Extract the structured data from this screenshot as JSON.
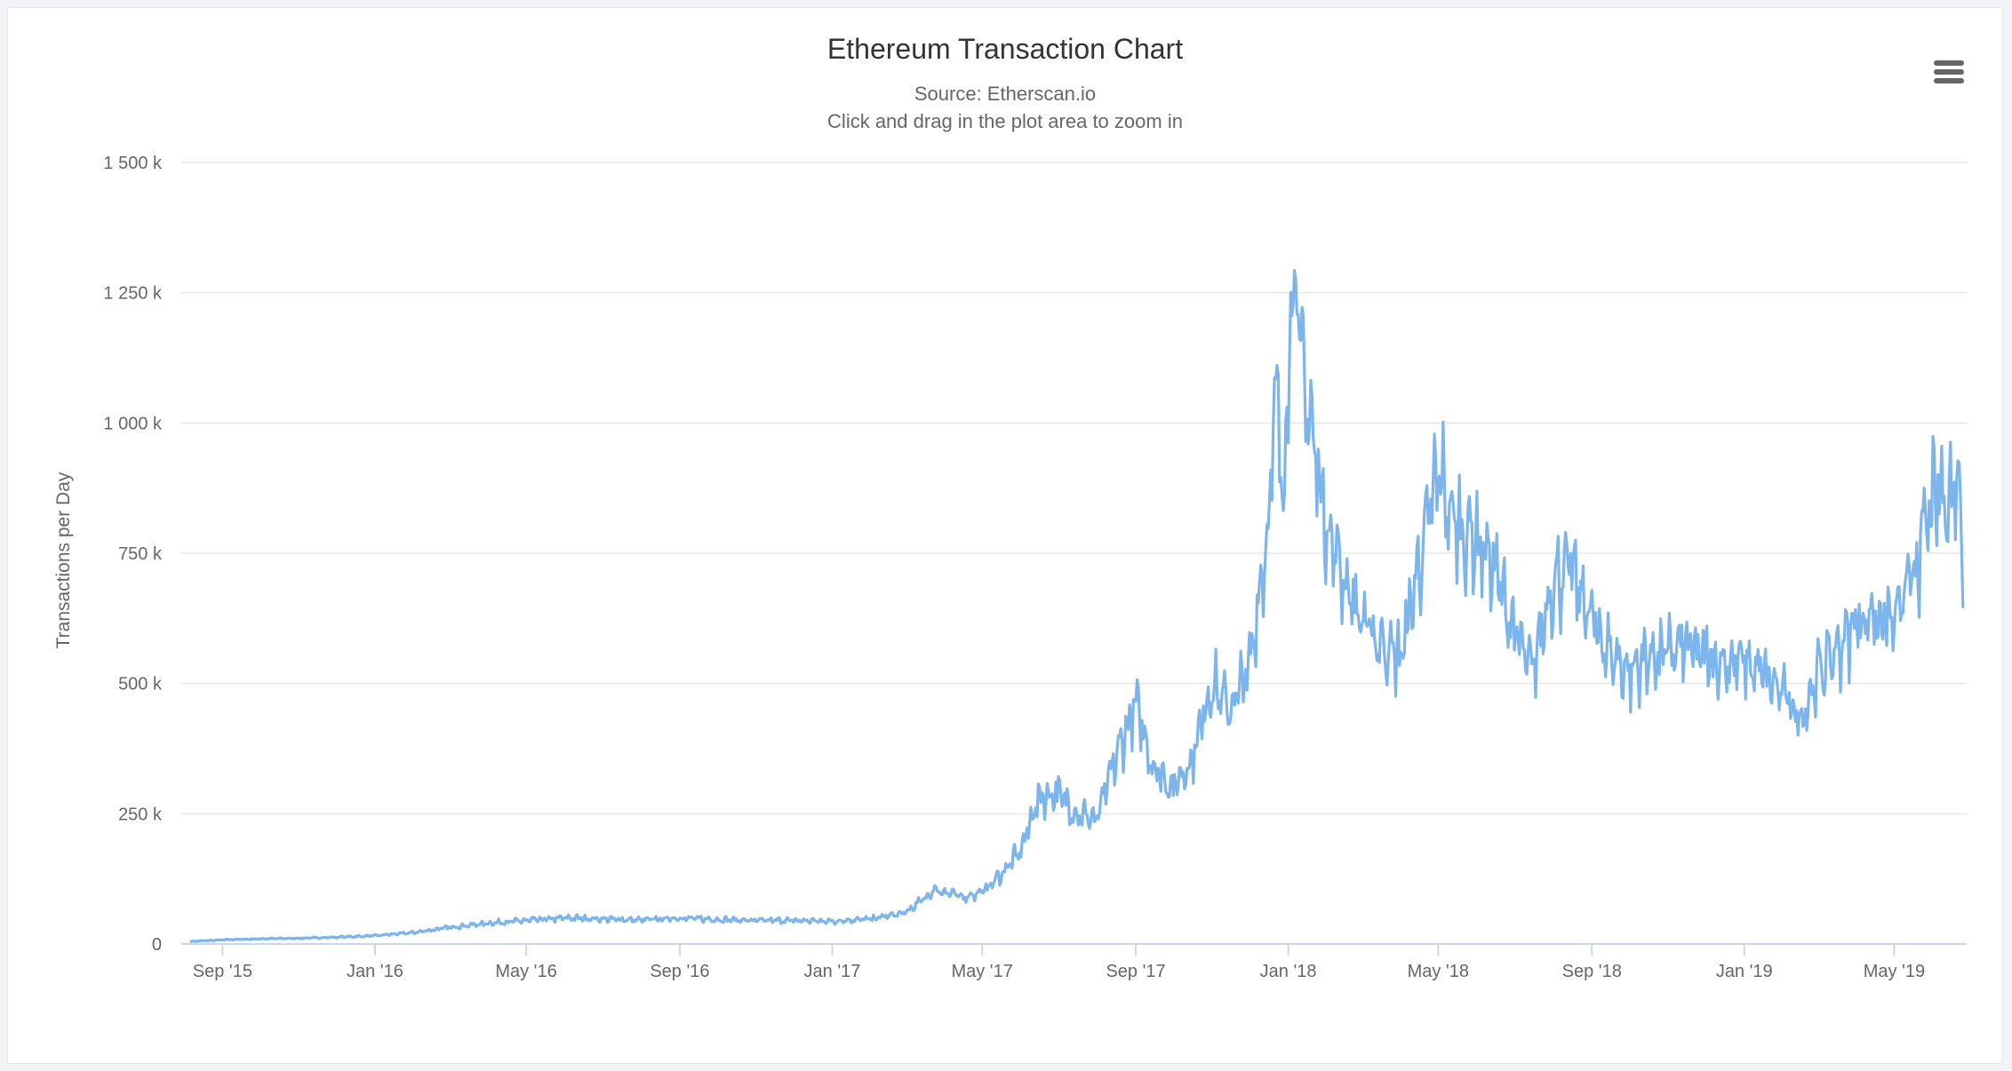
{
  "menu": {
    "icon": "hamburger-menu-icon"
  },
  "colors": {
    "series": "#7cb5ec",
    "grid": "#e6e6e6",
    "axis": "#ccd6eb",
    "text": "#666666",
    "title": "#333333"
  },
  "chart_data": {
    "type": "line",
    "title": "Ethereum Transaction Chart",
    "subtitle": "Source: Etherscan.io",
    "subtitle2": "Click and drag in the plot area to zoom in",
    "ylabel": "Transactions per Day",
    "xlabel": "",
    "ylim": [
      0,
      1500000
    ],
    "xlim": [
      "2015-07-30",
      "2019-06-28"
    ],
    "grid": true,
    "legend": "none",
    "y_ticks": [
      {
        "value": 0,
        "label": "0"
      },
      {
        "value": 250000,
        "label": "250 k"
      },
      {
        "value": 500000,
        "label": "500 k"
      },
      {
        "value": 750000,
        "label": "750 k"
      },
      {
        "value": 1000000,
        "label": "1 000 k"
      },
      {
        "value": 1250000,
        "label": "1 250 k"
      },
      {
        "value": 1500000,
        "label": "1 500 k"
      }
    ],
    "x_ticks": [
      {
        "date": "2015-09-01",
        "label": "Sep '15"
      },
      {
        "date": "2016-01-01",
        "label": "Jan '16"
      },
      {
        "date": "2016-05-01",
        "label": "May '16"
      },
      {
        "date": "2016-09-01",
        "label": "Sep '16"
      },
      {
        "date": "2017-01-01",
        "label": "Jan '17"
      },
      {
        "date": "2017-05-01",
        "label": "May '17"
      },
      {
        "date": "2017-09-01",
        "label": "Sep '17"
      },
      {
        "date": "2018-01-01",
        "label": "Jan '18"
      },
      {
        "date": "2018-05-01",
        "label": "May '18"
      },
      {
        "date": "2018-09-01",
        "label": "Sep '18"
      },
      {
        "date": "2019-01-01",
        "label": "Jan '19"
      },
      {
        "date": "2019-05-01",
        "label": "May '19"
      }
    ],
    "series": [
      {
        "points": [
          [
            "2015-08-07",
            5000
          ],
          [
            "2015-09-01",
            8000
          ],
          [
            "2015-10-01",
            10000
          ],
          [
            "2015-11-01",
            11000
          ],
          [
            "2015-12-01",
            13000
          ],
          [
            "2016-01-01",
            16000
          ],
          [
            "2016-02-01",
            22000
          ],
          [
            "2016-03-01",
            32000
          ],
          [
            "2016-04-01",
            40000
          ],
          [
            "2016-05-01",
            45000
          ],
          [
            "2016-06-01",
            50000
          ],
          [
            "2016-07-01",
            48000
          ],
          [
            "2016-08-01",
            46000
          ],
          [
            "2016-09-01",
            50000
          ],
          [
            "2016-10-01",
            47000
          ],
          [
            "2016-11-01",
            45000
          ],
          [
            "2016-12-01",
            45000
          ],
          [
            "2017-01-01",
            44000
          ],
          [
            "2017-02-01",
            48000
          ],
          [
            "2017-03-01",
            60000
          ],
          [
            "2017-03-25",
            105000
          ],
          [
            "2017-04-15",
            90000
          ],
          [
            "2017-05-01",
            100000
          ],
          [
            "2017-05-15",
            130000
          ],
          [
            "2017-06-01",
            180000
          ],
          [
            "2017-06-15",
            280000
          ],
          [
            "2017-07-01",
            290000
          ],
          [
            "2017-07-15",
            250000
          ],
          [
            "2017-08-01",
            240000
          ],
          [
            "2017-08-15",
            350000
          ],
          [
            "2017-09-01",
            460000
          ],
          [
            "2017-09-15",
            340000
          ],
          [
            "2017-10-01",
            300000
          ],
          [
            "2017-10-15",
            350000
          ],
          [
            "2017-11-01",
            500000
          ],
          [
            "2017-11-15",
            450000
          ],
          [
            "2017-12-01",
            530000
          ],
          [
            "2017-12-10",
            700000
          ],
          [
            "2017-12-15",
            780000
          ],
          [
            "2017-12-22",
            1050000
          ],
          [
            "2017-12-28",
            850000
          ],
          [
            "2018-01-04",
            1300000
          ],
          [
            "2018-01-10",
            1150000
          ],
          [
            "2018-01-20",
            980000
          ],
          [
            "2018-02-01",
            800000
          ],
          [
            "2018-02-15",
            700000
          ],
          [
            "2018-03-01",
            620000
          ],
          [
            "2018-03-15",
            580000
          ],
          [
            "2018-04-01",
            550000
          ],
          [
            "2018-04-15",
            720000
          ],
          [
            "2018-05-01",
            900000
          ],
          [
            "2018-05-15",
            800000
          ],
          [
            "2018-06-01",
            780000
          ],
          [
            "2018-06-15",
            720000
          ],
          [
            "2018-07-01",
            600000
          ],
          [
            "2018-07-15",
            520000
          ],
          [
            "2018-08-01",
            700000
          ],
          [
            "2018-08-15",
            720000
          ],
          [
            "2018-09-01",
            620000
          ],
          [
            "2018-09-15",
            560000
          ],
          [
            "2018-10-01",
            520000
          ],
          [
            "2018-10-15",
            550000
          ],
          [
            "2018-11-01",
            560000
          ],
          [
            "2018-11-15",
            570000
          ],
          [
            "2018-12-01",
            550000
          ],
          [
            "2018-12-15",
            540000
          ],
          [
            "2019-01-01",
            540000
          ],
          [
            "2019-01-15",
            520000
          ],
          [
            "2019-02-01",
            480000
          ],
          [
            "2019-02-15",
            430000
          ],
          [
            "2019-03-01",
            520000
          ],
          [
            "2019-03-15",
            560000
          ],
          [
            "2019-04-01",
            620000
          ],
          [
            "2019-04-15",
            630000
          ],
          [
            "2019-05-01",
            620000
          ],
          [
            "2019-05-15",
            700000
          ],
          [
            "2019-06-01",
            850000
          ],
          [
            "2019-06-15",
            860000
          ],
          [
            "2019-06-22",
            900000
          ],
          [
            "2019-06-25",
            700000
          ]
        ]
      }
    ]
  }
}
